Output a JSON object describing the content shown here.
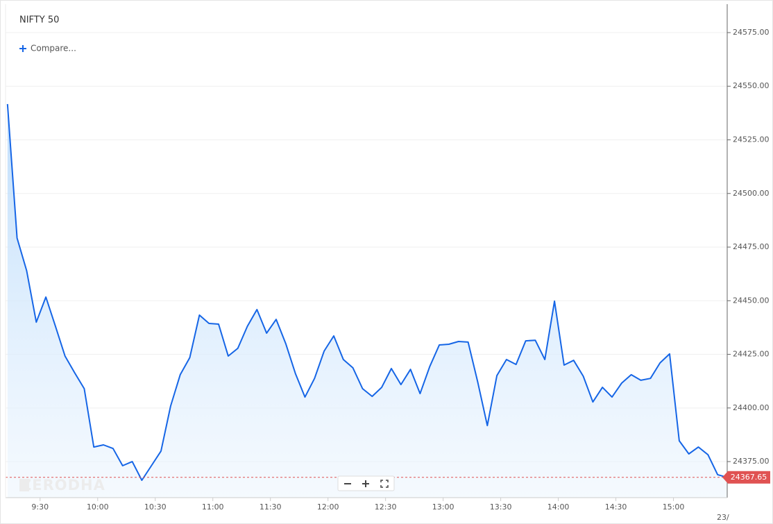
{
  "chart_data": {
    "type": "area",
    "title": "NIFTY 50",
    "compare_label": "Compare...",
    "watermark": "ZERODHA",
    "date_label": "23/",
    "x": [
      "9:13",
      "9:18",
      "9:23",
      "9:28",
      "9:33",
      "9:38",
      "9:43",
      "9:48",
      "9:53",
      "9:58",
      "10:03",
      "10:08",
      "10:13",
      "10:18",
      "10:23",
      "10:28",
      "10:33",
      "10:38",
      "10:43",
      "10:48",
      "10:53",
      "10:58",
      "11:03",
      "11:08",
      "11:13",
      "11:18",
      "11:23",
      "11:28",
      "11:33",
      "11:38",
      "11:43",
      "11:48",
      "11:53",
      "11:58",
      "12:03",
      "12:08",
      "12:13",
      "12:18",
      "12:23",
      "12:28",
      "12:33",
      "12:38",
      "12:43",
      "12:48",
      "12:53",
      "12:58",
      "13:03",
      "13:08",
      "13:13",
      "13:18",
      "13:23",
      "13:28",
      "13:33",
      "13:38",
      "13:43",
      "13:48",
      "13:53",
      "13:58",
      "14:03",
      "14:08",
      "14:13",
      "14:18",
      "14:23",
      "14:28",
      "14:33",
      "14:38",
      "14:43",
      "14:48",
      "14:53",
      "14:58",
      "15:03",
      "15:08",
      "15:13",
      "15:18",
      "15:23",
      "15:28"
    ],
    "series": [
      {
        "name": "NIFTY 50",
        "color": "#1565e6",
        "values": [
          24541.7,
          24479.2,
          24464.0,
          24440.0,
          24451.7,
          24438.1,
          24424.2,
          24416.4,
          24409.0,
          24381.8,
          24382.8,
          24381.1,
          24373.1,
          24375.0,
          24366.3,
          24373.1,
          24379.9,
          24400.9,
          24415.5,
          24423.5,
          24443.3,
          24439.4,
          24439.1,
          24424.2,
          24427.8,
          24438.1,
          24445.9,
          24434.9,
          24441.3,
          24430.0,
          24416.1,
          24405.1,
          24413.8,
          24426.5,
          24433.6,
          24422.6,
          24418.7,
          24409.0,
          24405.4,
          24409.6,
          24418.4,
          24410.9,
          24418.0,
          24406.7,
          24419.3,
          24429.4,
          24429.7,
          24431.0,
          24430.7,
          24412.2,
          24391.8,
          24415.1,
          24422.6,
          24420.3,
          24431.3,
          24431.6,
          24422.6,
          24449.8,
          24420.0,
          24422.2,
          24414.8,
          24402.8,
          24409.6,
          24405.1,
          24411.6,
          24415.5,
          24412.9,
          24413.8,
          24421.0,
          24425.2,
          24384.7,
          24378.6,
          24381.8,
          24378.2,
          24368.9,
          24367.65
        ]
      }
    ],
    "last_color": "#e05252",
    "xlim": [
      "9:12",
      "15:28"
    ],
    "xticks": [
      "9:30",
      "10:00",
      "10:30",
      "11:00",
      "11:30",
      "12:00",
      "12:30",
      "13:00",
      "13:30",
      "14:00",
      "14:30",
      "15:00"
    ],
    "ylim": [
      24358.2,
      24590.2
    ],
    "yticks": [
      {
        "value": 24375,
        "label": "24375.00"
      },
      {
        "value": 24400,
        "label": "24400.00"
      },
      {
        "value": 24425,
        "label": "24425.00"
      },
      {
        "value": 24450,
        "label": "24450.00"
      },
      {
        "value": 24475,
        "label": "24475.00"
      },
      {
        "value": 24500,
        "label": "24500.00"
      },
      {
        "value": 24525,
        "label": "24525.00"
      },
      {
        "value": 24550,
        "label": "24550.00"
      },
      {
        "value": 24575,
        "label": "24575.00"
      }
    ],
    "grid": true
  }
}
